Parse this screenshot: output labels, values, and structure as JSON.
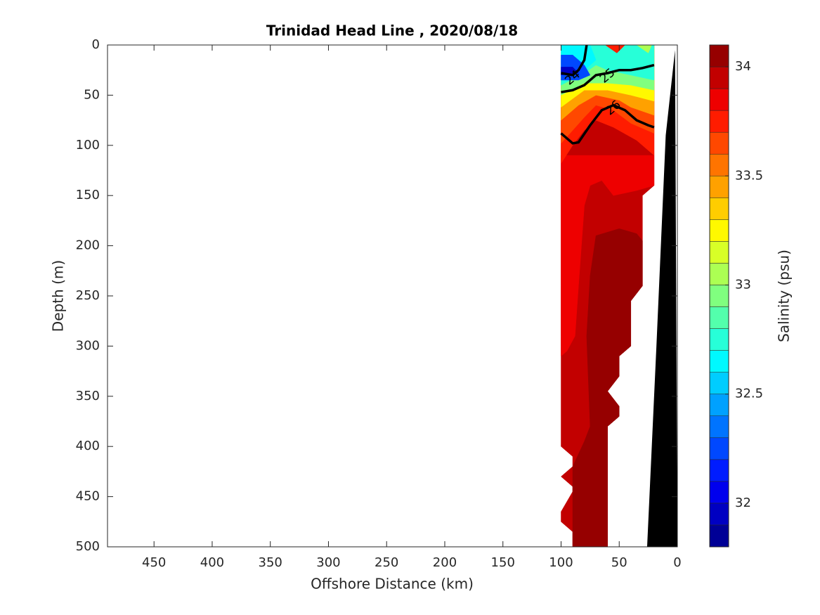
{
  "chart_data": {
    "type": "contourf",
    "title": "Trinidad Head Line , 2020/08/18",
    "x_label": "Offshore Distance (km)",
    "y_label": "Depth (m)",
    "colorbar_label": "Salinity (psu)",
    "xlim": [
      490,
      0
    ],
    "xticks": [
      450,
      400,
      350,
      300,
      250,
      200,
      150,
      100,
      50,
      0
    ],
    "ylim": [
      0,
      500
    ],
    "yticks": [
      0,
      50,
      100,
      150,
      200,
      250,
      300,
      350,
      400,
      450,
      500
    ],
    "clim": [
      31.8,
      34.1
    ],
    "cticks": [
      32,
      32.5,
      33,
      33.5,
      34
    ],
    "colormap": "jet",
    "levels": [
      31.8,
      31.9,
      32.0,
      32.1,
      32.2,
      32.3,
      32.4,
      32.5,
      32.6,
      32.7,
      32.8,
      32.9,
      33.0,
      33.1,
      33.2,
      33.3,
      33.4,
      33.5,
      33.6,
      33.7,
      33.8,
      33.9,
      34.0,
      34.1
    ],
    "regions": [
      {
        "value": 33.95,
        "points": [
          [
            100,
            0
          ],
          [
            20,
            0
          ],
          [
            20,
            140
          ],
          [
            30,
            150
          ],
          [
            30,
            240
          ],
          [
            40,
            255
          ],
          [
            40,
            300
          ],
          [
            50,
            310
          ],
          [
            50,
            330
          ],
          [
            60,
            345
          ],
          [
            50,
            360
          ],
          [
            50,
            370
          ],
          [
            60,
            380
          ],
          [
            60,
            500
          ],
          [
            90,
            500
          ],
          [
            90,
            485
          ],
          [
            100,
            475
          ],
          [
            100,
            465
          ],
          [
            90,
            445
          ],
          [
            90,
            440
          ],
          [
            100,
            430
          ],
          [
            90,
            420
          ],
          [
            90,
            410
          ],
          [
            100,
            400
          ]
        ]
      },
      {
        "value": 34.05,
        "points": [
          [
            70,
            190
          ],
          [
            50,
            183
          ],
          [
            35,
            188
          ],
          [
            30,
            195
          ],
          [
            30,
            240
          ],
          [
            40,
            255
          ],
          [
            40,
            300
          ],
          [
            50,
            310
          ],
          [
            50,
            330
          ],
          [
            60,
            345
          ],
          [
            50,
            360
          ],
          [
            50,
            370
          ],
          [
            60,
            380
          ],
          [
            60,
            500
          ],
          [
            90,
            500
          ],
          [
            90,
            420
          ],
          [
            80,
            395
          ],
          [
            75,
            380
          ],
          [
            78,
            290
          ],
          [
            75,
            230
          ]
        ]
      },
      {
        "value": 33.85,
        "points": [
          [
            100,
            110
          ],
          [
            20,
            110
          ],
          [
            20,
            140
          ],
          [
            35,
            145
          ],
          [
            55,
            150
          ],
          [
            65,
            135
          ],
          [
            75,
            140
          ],
          [
            80,
            160
          ],
          [
            85,
            240
          ],
          [
            88,
            290
          ],
          [
            95,
            305
          ],
          [
            100,
            310
          ]
        ]
      },
      {
        "value": 33.75,
        "points": [
          [
            100,
            0
          ],
          [
            20,
            0
          ],
          [
            20,
            110
          ],
          [
            35,
            95
          ],
          [
            55,
            82
          ],
          [
            70,
            75
          ],
          [
            80,
            85
          ],
          [
            90,
            100
          ],
          [
            100,
            118
          ]
        ]
      },
      {
        "value": 33.65,
        "points": [
          [
            100,
            0
          ],
          [
            20,
            0
          ],
          [
            20,
            88
          ],
          [
            40,
            78
          ],
          [
            55,
            65
          ],
          [
            70,
            60
          ],
          [
            80,
            72
          ],
          [
            90,
            85
          ],
          [
            100,
            98
          ]
        ]
      },
      {
        "value": 33.45,
        "points": [
          [
            100,
            0
          ],
          [
            20,
            0
          ],
          [
            20,
            70
          ],
          [
            40,
            62
          ],
          [
            50,
            55
          ],
          [
            70,
            50
          ],
          [
            85,
            60
          ],
          [
            100,
            75
          ]
        ]
      },
      {
        "value": 33.25,
        "points": [
          [
            100,
            0
          ],
          [
            20,
            0
          ],
          [
            20,
            56
          ],
          [
            40,
            50
          ],
          [
            60,
            45
          ],
          [
            80,
            45
          ],
          [
            100,
            62
          ]
        ]
      },
      {
        "value": 32.95,
        "points": [
          [
            100,
            0
          ],
          [
            20,
            0
          ],
          [
            20,
            45
          ],
          [
            40,
            40
          ],
          [
            60,
            38
          ],
          [
            80,
            38
          ],
          [
            100,
            50
          ]
        ]
      },
      {
        "value": 32.75,
        "points": [
          [
            100,
            0
          ],
          [
            20,
            0
          ],
          [
            20,
            35
          ],
          [
            40,
            30
          ],
          [
            60,
            25
          ],
          [
            70,
            20
          ],
          [
            80,
            28
          ],
          [
            100,
            40
          ]
        ]
      },
      {
        "value": 32.65,
        "points": [
          [
            100,
            0
          ],
          [
            75,
            0
          ],
          [
            70,
            15
          ],
          [
            80,
            25
          ],
          [
            100,
            30
          ]
        ]
      },
      {
        "value": 32.25,
        "points": [
          [
            100,
            10
          ],
          [
            90,
            10
          ],
          [
            80,
            20
          ],
          [
            75,
            30
          ],
          [
            85,
            35
          ],
          [
            100,
            35
          ]
        ]
      },
      {
        "value": 31.95,
        "points": [
          [
            100,
            22
          ],
          [
            90,
            22
          ],
          [
            85,
            28
          ],
          [
            100,
            30
          ]
        ]
      },
      {
        "value": 33.75,
        "points": [
          [
            62,
            0
          ],
          [
            45,
            0
          ],
          [
            52,
            8
          ]
        ]
      },
      {
        "value": 33.05,
        "points": [
          [
            35,
            0
          ],
          [
            22,
            0
          ],
          [
            25,
            8
          ]
        ]
      }
    ],
    "contours": [
      {
        "level": 24,
        "points": [
          [
            100,
            28
          ],
          [
            90,
            30
          ],
          [
            85,
            25
          ],
          [
            80,
            15
          ],
          [
            78,
            0
          ]
        ]
      },
      {
        "level": 25,
        "points": [
          [
            100,
            47
          ],
          [
            90,
            45
          ],
          [
            80,
            40
          ],
          [
            70,
            30
          ],
          [
            60,
            28
          ],
          [
            50,
            25
          ],
          [
            40,
            25
          ],
          [
            30,
            23
          ],
          [
            20,
            20
          ]
        ]
      },
      {
        "level": 26,
        "points": [
          [
            100,
            88
          ],
          [
            90,
            98
          ],
          [
            85,
            97
          ],
          [
            75,
            80
          ],
          [
            65,
            65
          ],
          [
            55,
            60
          ],
          [
            45,
            65
          ],
          [
            35,
            75
          ],
          [
            25,
            80
          ],
          [
            20,
            82
          ]
        ]
      }
    ],
    "bathymetry": {
      "x": [
        2,
        10,
        18,
        26,
        0
      ],
      "depth": [
        5,
        90,
        300,
        500,
        500
      ]
    }
  }
}
